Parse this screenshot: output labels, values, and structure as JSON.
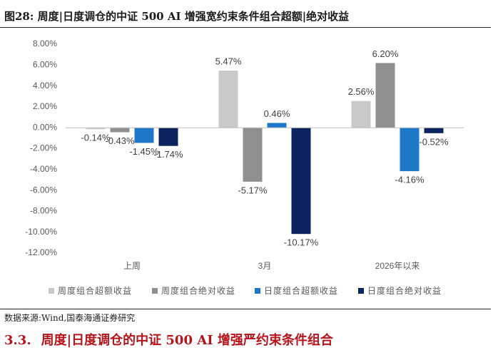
{
  "header": {
    "title": "图28:  周度|日度调仓的中证 500 AI 增强宽约束条件组合超额|绝对收益"
  },
  "chart_data": {
    "type": "bar",
    "categories": [
      "上周",
      "3月",
      "2026年以来"
    ],
    "series": [
      {
        "name": "周度组合超额收益",
        "color": "#c9c9c9",
        "values": [
          -0.14,
          5.47,
          2.56
        ],
        "value_labels": [
          "-0.14%",
          "5.47%",
          "2.56%"
        ]
      },
      {
        "name": "周度组合绝对收益",
        "color": "#8f8f8f",
        "values": [
          -0.43,
          -5.17,
          6.2
        ],
        "value_labels": [
          "-0.43%",
          "-5.17%",
          "6.20%"
        ]
      },
      {
        "name": "日度组合超额收益",
        "color": "#1e78c8",
        "values": [
          -1.45,
          0.46,
          -4.16
        ],
        "value_labels": [
          "-1.45%",
          "0.46%",
          "-4.16%"
        ]
      },
      {
        "name": "日度组合绝对收益",
        "color": "#0b2460",
        "values": [
          -1.74,
          -10.17,
          -0.52
        ],
        "value_labels": [
          "-1.74%",
          "-10.17%",
          "-0.52%"
        ]
      }
    ],
    "ylim": [
      -12,
      8
    ],
    "yticks": [
      {
        "value": 8,
        "label": "8.00%"
      },
      {
        "value": 6,
        "label": "6.00%"
      },
      {
        "value": 4,
        "label": "4.00%"
      },
      {
        "value": 2,
        "label": "2.00%"
      },
      {
        "value": 0,
        "label": "0.00%"
      },
      {
        "value": -2,
        "label": "-2.00%"
      },
      {
        "value": -4,
        "label": "-4.00%"
      },
      {
        "value": -6,
        "label": "-6.00%"
      },
      {
        "value": -8,
        "label": "-8.00%"
      },
      {
        "value": -10,
        "label": "-10.00%"
      },
      {
        "value": -12,
        "label": "-12.00%"
      }
    ],
    "grid": false,
    "legend": "bottom"
  },
  "source": "数据来源:Wind,国泰海通证券研究",
  "section": {
    "number": "3.3.",
    "title": "周度|日度调仓的中证 500 AI 增强严约束条件组合"
  }
}
